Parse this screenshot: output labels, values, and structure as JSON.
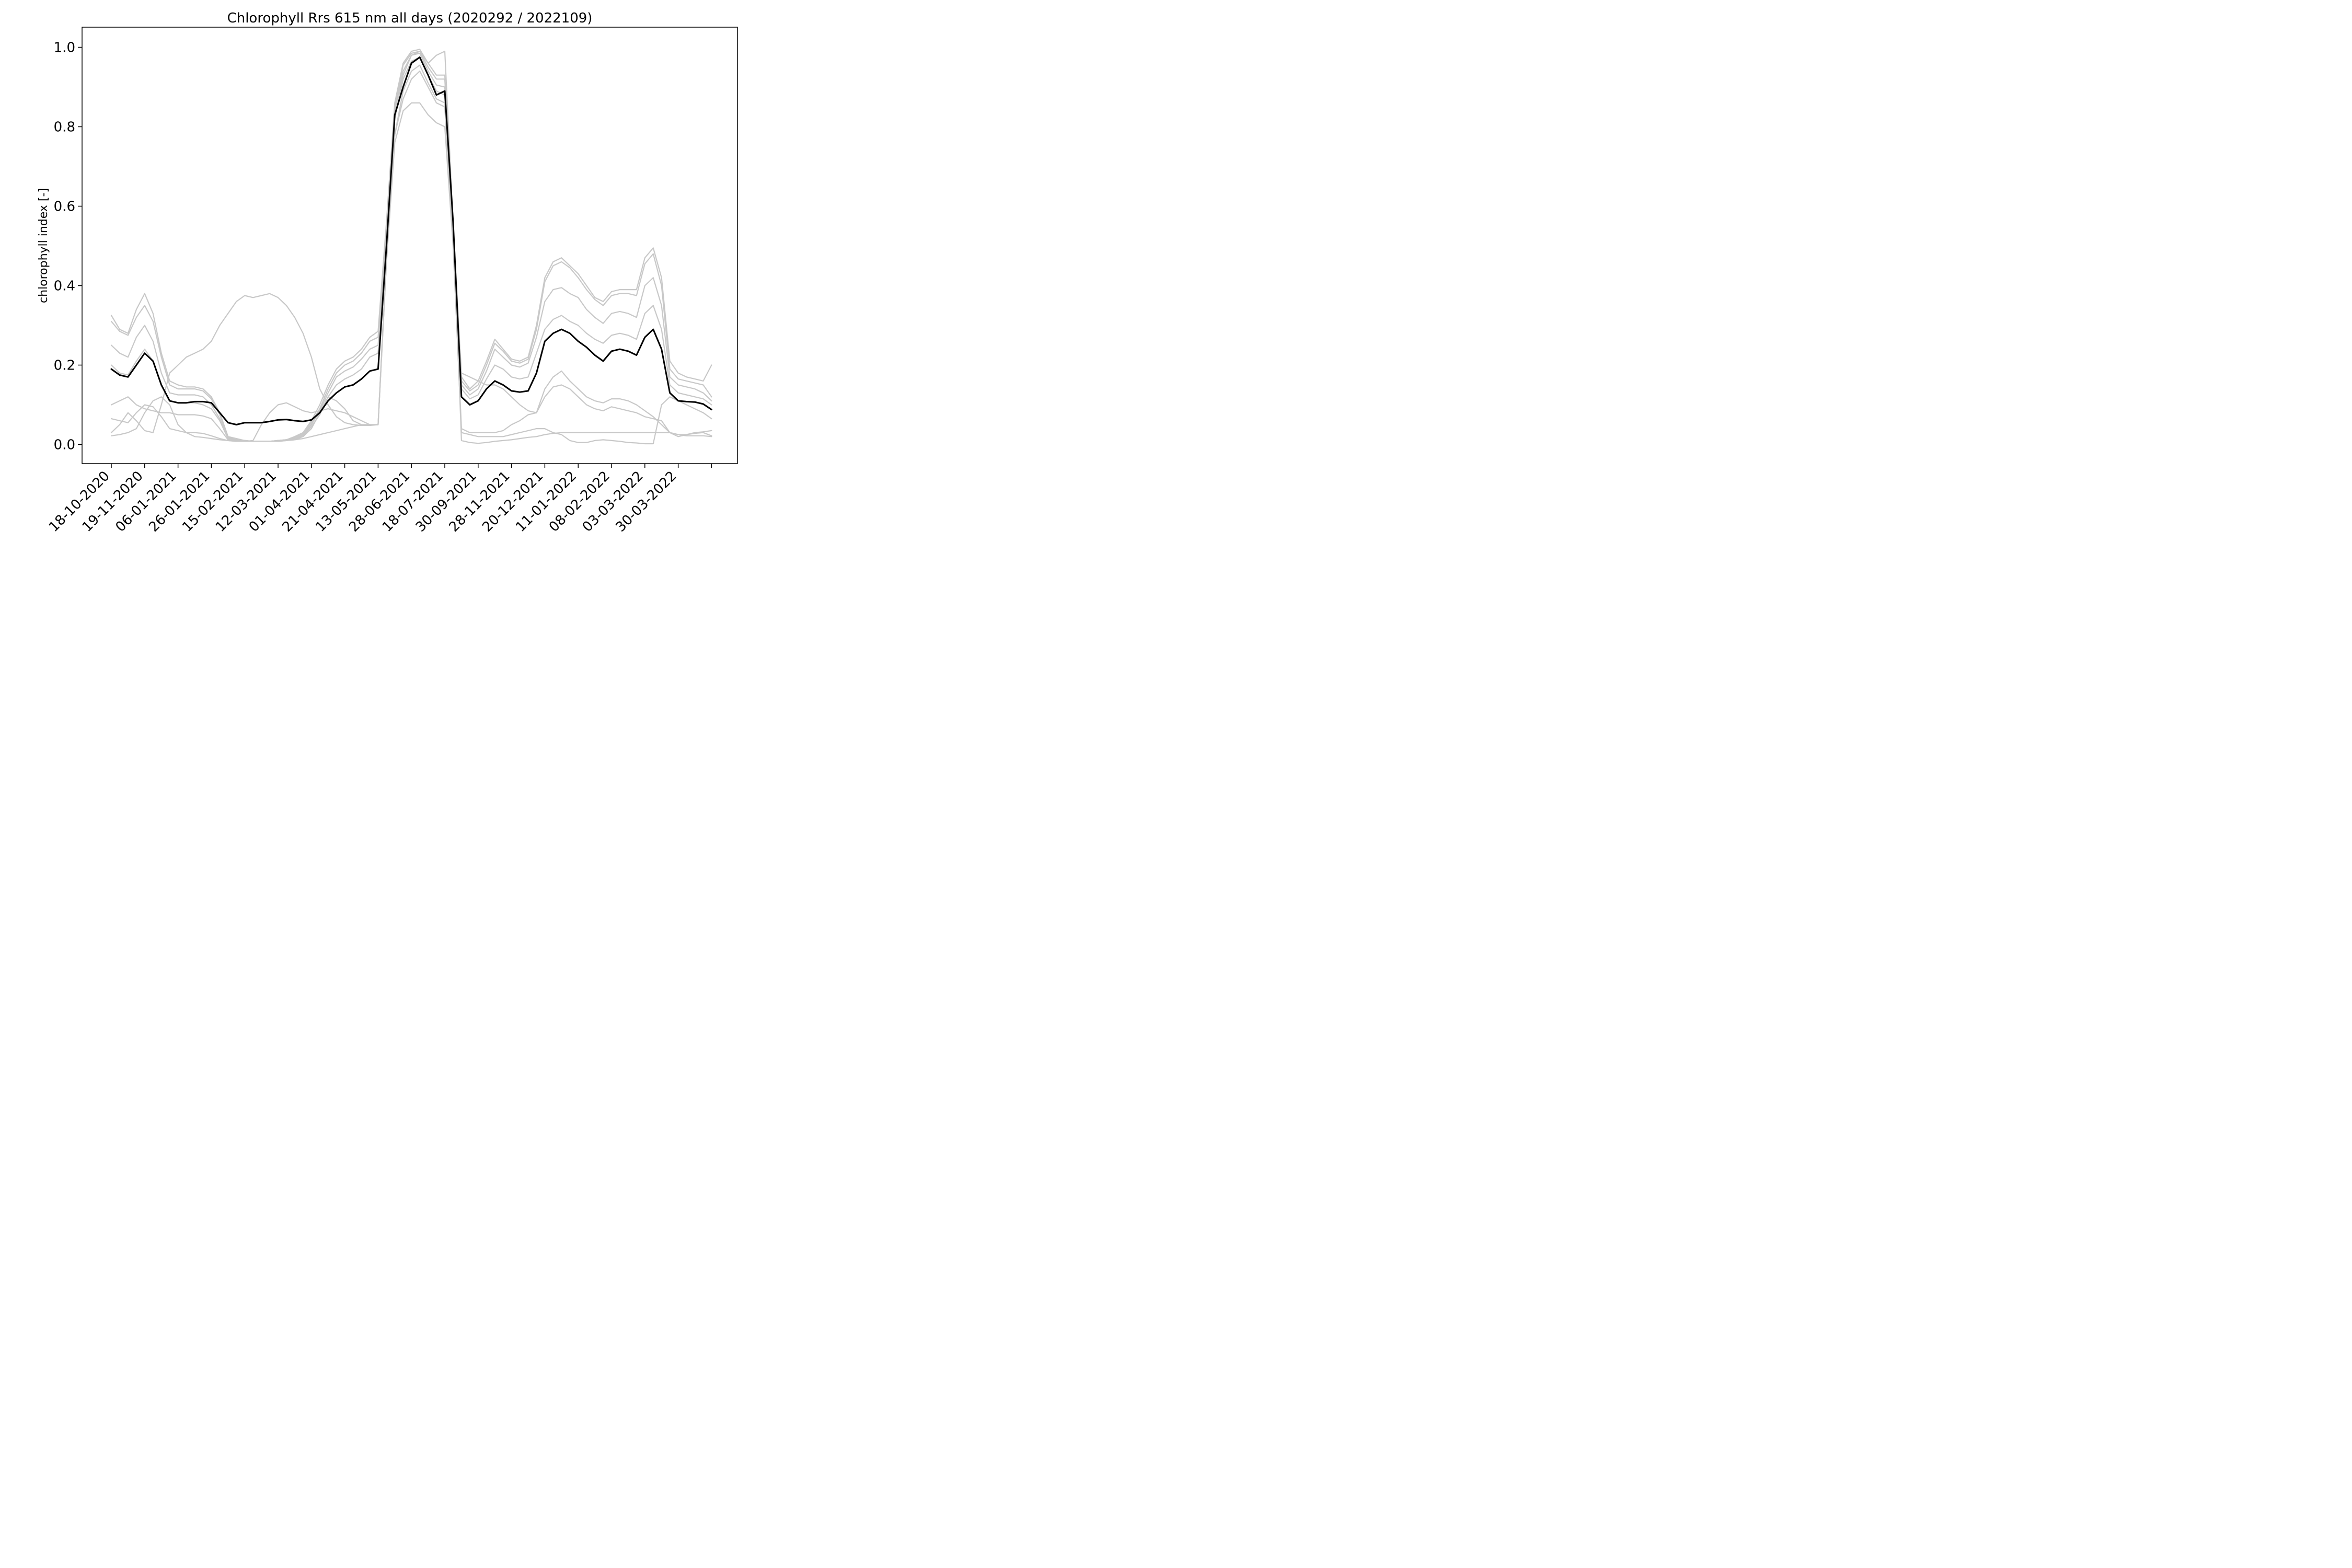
{
  "chart_data": {
    "type": "line",
    "title": "Chlorophyll Rrs 615 nm all days (2020292 / 2022109)",
    "ylabel": "chlorophyll index [-]",
    "ylim": [
      -0.05,
      1.05
    ],
    "yticks": [
      0.0,
      0.2,
      0.4,
      0.6,
      0.8,
      1.0
    ],
    "ytick_labels": [
      "0.0",
      "0.2",
      "0.4",
      "0.6",
      "0.8",
      "1.0"
    ],
    "xtick_labels": [
      "18-10-2020",
      "19-11-2020",
      "06-01-2021",
      "26-01-2021",
      "15-02-2021",
      "12-03-2021",
      "01-04-2021",
      "21-04-2021",
      "13-05-2021",
      "28-06-2021",
      "18-07-2021",
      "30-09-2021",
      "28-11-2021",
      "20-12-2021",
      "11-01-2022",
      "08-02-2022",
      "03-03-2022",
      "30-03-2022",
      ""
    ],
    "grid": false,
    "colors": {
      "individual": "#c8c8c8",
      "mean": "#000000",
      "frame": "#000000",
      "background": "#ffffff"
    },
    "x": [
      0,
      0.25,
      0.5,
      0.75,
      1,
      1.25,
      1.5,
      1.75,
      2,
      2.25,
      2.5,
      2.75,
      3,
      3.25,
      3.5,
      3.75,
      4,
      4.25,
      4.5,
      4.75,
      5,
      5.25,
      5.5,
      5.75,
      6,
      6.25,
      6.5,
      6.75,
      7,
      7.25,
      7.5,
      7.75,
      8,
      8.25,
      8.5,
      8.75,
      9,
      9.25,
      9.5,
      9.75,
      10,
      10.25,
      10.5,
      10.75,
      11,
      11.25,
      11.5,
      11.75,
      12,
      12.25,
      12.5,
      12.75,
      13,
      13.25,
      13.5,
      13.75,
      14,
      14.25,
      14.5,
      14.75,
      15,
      15.25,
      15.5,
      15.75,
      16,
      16.25,
      16.5,
      16.75,
      17,
      17.25,
      17.5,
      17.75,
      18
    ],
    "mean_series": {
      "name": "",
      "values": [
        0.19,
        0.175,
        0.17,
        0.2,
        0.23,
        0.21,
        0.15,
        0.11,
        0.105,
        0.105,
        0.108,
        0.108,
        0.105,
        0.08,
        0.055,
        0.05,
        0.055,
        0.055,
        0.055,
        0.058,
        0.062,
        0.063,
        0.06,
        0.058,
        0.062,
        0.08,
        0.11,
        0.13,
        0.145,
        0.15,
        0.165,
        0.185,
        0.19,
        0.5,
        0.83,
        0.9,
        0.96,
        0.975,
        0.93,
        0.88,
        0.89,
        0.56,
        0.12,
        0.1,
        0.11,
        0.14,
        0.16,
        0.15,
        0.135,
        0.132,
        0.135,
        0.18,
        0.26,
        0.28,
        0.29,
        0.28,
        0.26,
        0.245,
        0.225,
        0.21,
        0.235,
        0.24,
        0.235,
        0.225,
        0.27,
        0.29,
        0.24,
        0.13,
        0.11,
        0.108,
        0.107,
        0.102,
        0.088
      ]
    },
    "series": [
      {
        "values": [
          0.325,
          0.29,
          0.28,
          0.34,
          0.38,
          0.33,
          0.23,
          0.16,
          0.15,
          0.145,
          0.145,
          0.14,
          0.12,
          0.08,
          0.02,
          0.015,
          0.01,
          0.008,
          0.008,
          0.008,
          0.01,
          0.012,
          0.02,
          0.03,
          0.06,
          0.1,
          0.15,
          0.19,
          0.21,
          0.22,
          0.24,
          0.27,
          0.285,
          0.56,
          0.86,
          0.96,
          0.99,
          0.995,
          0.96,
          0.93,
          0.93,
          0.56,
          0.17,
          0.14,
          0.16,
          0.21,
          0.265,
          0.24,
          0.215,
          0.21,
          0.22,
          0.3,
          0.42,
          0.46,
          0.47,
          0.45,
          0.43,
          0.4,
          0.37,
          0.36,
          0.385,
          0.39,
          0.39,
          0.39,
          0.47,
          0.495,
          0.42,
          0.21,
          0.18,
          0.17,
          0.165,
          0.16,
          0.2
        ]
      },
      {
        "values": [
          0.31,
          0.285,
          0.275,
          0.32,
          0.35,
          0.31,
          0.22,
          0.15,
          0.14,
          0.14,
          0.14,
          0.135,
          0.115,
          0.075,
          0.018,
          0.012,
          0.01,
          0.008,
          0.008,
          0.008,
          0.01,
          0.012,
          0.018,
          0.028,
          0.055,
          0.09,
          0.14,
          0.18,
          0.2,
          0.21,
          0.23,
          0.26,
          0.27,
          0.54,
          0.85,
          0.955,
          0.985,
          0.99,
          0.95,
          0.92,
          0.92,
          0.55,
          0.16,
          0.135,
          0.15,
          0.2,
          0.255,
          0.235,
          0.21,
          0.205,
          0.215,
          0.29,
          0.41,
          0.45,
          0.46,
          0.445,
          0.42,
          0.39,
          0.365,
          0.35,
          0.375,
          0.38,
          0.38,
          0.375,
          0.455,
          0.48,
          0.4,
          0.19,
          0.165,
          0.16,
          0.155,
          0.15,
          0.12
        ]
      },
      {
        "values": [
          0.25,
          0.23,
          0.22,
          0.27,
          0.3,
          0.26,
          0.18,
          0.13,
          0.125,
          0.125,
          0.125,
          0.12,
          0.1,
          0.065,
          0.015,
          0.012,
          0.01,
          0.008,
          0.008,
          0.008,
          0.01,
          0.012,
          0.015,
          0.025,
          0.05,
          0.085,
          0.13,
          0.17,
          0.185,
          0.195,
          0.215,
          0.24,
          0.25,
          0.52,
          0.84,
          0.94,
          0.98,
          0.985,
          0.94,
          0.905,
          0.9,
          0.54,
          0.15,
          0.125,
          0.14,
          0.185,
          0.24,
          0.22,
          0.2,
          0.195,
          0.205,
          0.27,
          0.36,
          0.39,
          0.395,
          0.38,
          0.37,
          0.34,
          0.32,
          0.305,
          0.33,
          0.335,
          0.33,
          0.32,
          0.4,
          0.42,
          0.35,
          0.17,
          0.15,
          0.145,
          0.14,
          0.13,
          0.11
        ]
      },
      {
        "values": [
          0.2,
          0.18,
          0.175,
          0.21,
          0.24,
          0.21,
          0.15,
          0.11,
          0.105,
          0.105,
          0.105,
          0.1,
          0.09,
          0.06,
          0.015,
          0.012,
          0.01,
          0.008,
          0.008,
          0.008,
          0.01,
          0.012,
          0.015,
          0.022,
          0.045,
          0.075,
          0.12,
          0.15,
          0.165,
          0.175,
          0.19,
          0.22,
          0.23,
          0.5,
          0.82,
          0.92,
          0.965,
          0.975,
          0.93,
          0.89,
          0.88,
          0.53,
          0.14,
          0.115,
          0.125,
          0.165,
          0.2,
          0.19,
          0.17,
          0.165,
          0.17,
          0.23,
          0.29,
          0.315,
          0.325,
          0.31,
          0.3,
          0.28,
          0.265,
          0.255,
          0.275,
          0.28,
          0.275,
          0.265,
          0.33,
          0.35,
          0.29,
          0.15,
          0.13,
          0.125,
          0.12,
          0.115,
          0.1
        ]
      },
      {
        "values": [
          0.1,
          0.11,
          0.12,
          0.1,
          0.09,
          0.085,
          0.08,
          0.08,
          0.075,
          0.075,
          0.075,
          0.072,
          0.065,
          0.04,
          0.012,
          0.01,
          0.008,
          0.008,
          0.008,
          0.008,
          0.008,
          0.01,
          0.012,
          0.02,
          0.04,
          0.08,
          0.12,
          0.11,
          0.09,
          0.06,
          0.05,
          0.05,
          0.05,
          0.48,
          0.78,
          0.87,
          0.92,
          0.94,
          0.9,
          0.86,
          0.85,
          0.52,
          0.18,
          0.17,
          0.16,
          0.15,
          0.15,
          0.14,
          0.12,
          0.1,
          0.085,
          0.08,
          0.14,
          0.17,
          0.185,
          0.16,
          0.14,
          0.12,
          0.11,
          0.105,
          0.115,
          0.115,
          0.11,
          0.1,
          0.085,
          0.07,
          0.05,
          0.03,
          0.025,
          0.025,
          0.03,
          0.032,
          0.035
        ]
      },
      {
        "values": [
          0.065,
          0.06,
          0.055,
          0.08,
          0.1,
          0.095,
          0.07,
          0.04,
          0.035,
          0.03,
          0.03,
          0.028,
          0.022,
          0.015,
          0.01,
          0.008,
          0.008,
          0.01,
          0.05,
          0.08,
          0.1,
          0.105,
          0.095,
          0.085,
          0.08,
          0.085,
          0.09,
          0.085,
          0.08,
          0.07,
          0.06,
          0.05,
          0.05,
          0.46,
          0.76,
          0.84,
          0.86,
          0.86,
          0.83,
          0.81,
          0.8,
          0.5,
          0.04,
          0.03,
          0.03,
          0.03,
          0.03,
          0.035,
          0.05,
          0.06,
          0.075,
          0.08,
          0.12,
          0.145,
          0.15,
          0.14,
          0.12,
          0.1,
          0.09,
          0.085,
          0.095,
          0.09,
          0.085,
          0.08,
          0.07,
          0.065,
          0.06,
          0.03,
          0.02,
          0.025,
          0.028,
          0.03,
          0.022
        ]
      },
      {
        "values": [
          0.022,
          0.025,
          0.03,
          0.04,
          0.08,
          0.11,
          0.12,
          0.1,
          0.05,
          0.03,
          0.02,
          0.018,
          0.015,
          0.012,
          0.01,
          0.008,
          0.008,
          0.008,
          0.008,
          0.008,
          0.008,
          0.01,
          0.012,
          0.015,
          0.02,
          0.025,
          0.03,
          0.035,
          0.04,
          0.045,
          0.05,
          0.05,
          0.05,
          0.46,
          0.78,
          0.89,
          0.94,
          0.955,
          0.91,
          0.87,
          0.86,
          0.51,
          0.03,
          0.025,
          0.02,
          0.02,
          0.02,
          0.02,
          0.025,
          0.03,
          0.035,
          0.04,
          0.04,
          0.03,
          0.025,
          0.01,
          0.005,
          0.005,
          0.01,
          0.012,
          0.01,
          0.008,
          0.005,
          0.004,
          0.002,
          0.002,
          0.1,
          0.12,
          0.11,
          0.1,
          0.09,
          0.08,
          0.065
        ]
      },
      {
        "values": [
          0.03,
          0.05,
          0.08,
          0.06,
          0.035,
          0.03,
          0.1,
          0.18,
          0.2,
          0.22,
          0.23,
          0.24,
          0.26,
          0.3,
          0.33,
          0.36,
          0.375,
          0.37,
          0.375,
          0.38,
          0.37,
          0.35,
          0.32,
          0.28,
          0.22,
          0.14,
          0.1,
          0.07,
          0.055,
          0.05,
          0.048,
          0.048,
          0.05,
          0.47,
          0.82,
          0.93,
          0.98,
          0.99,
          0.96,
          0.98,
          0.99,
          0.56,
          0.01,
          0.005,
          0.003,
          0.005,
          0.008,
          0.01,
          0.012,
          0.015,
          0.018,
          0.02,
          0.025,
          0.028,
          0.03,
          0.03,
          0.03,
          0.03,
          0.03,
          0.03,
          0.03,
          0.03,
          0.03,
          0.03,
          0.03,
          0.03,
          0.03,
          0.03,
          0.025,
          0.022,
          0.022,
          0.022,
          0.02
        ]
      }
    ]
  }
}
